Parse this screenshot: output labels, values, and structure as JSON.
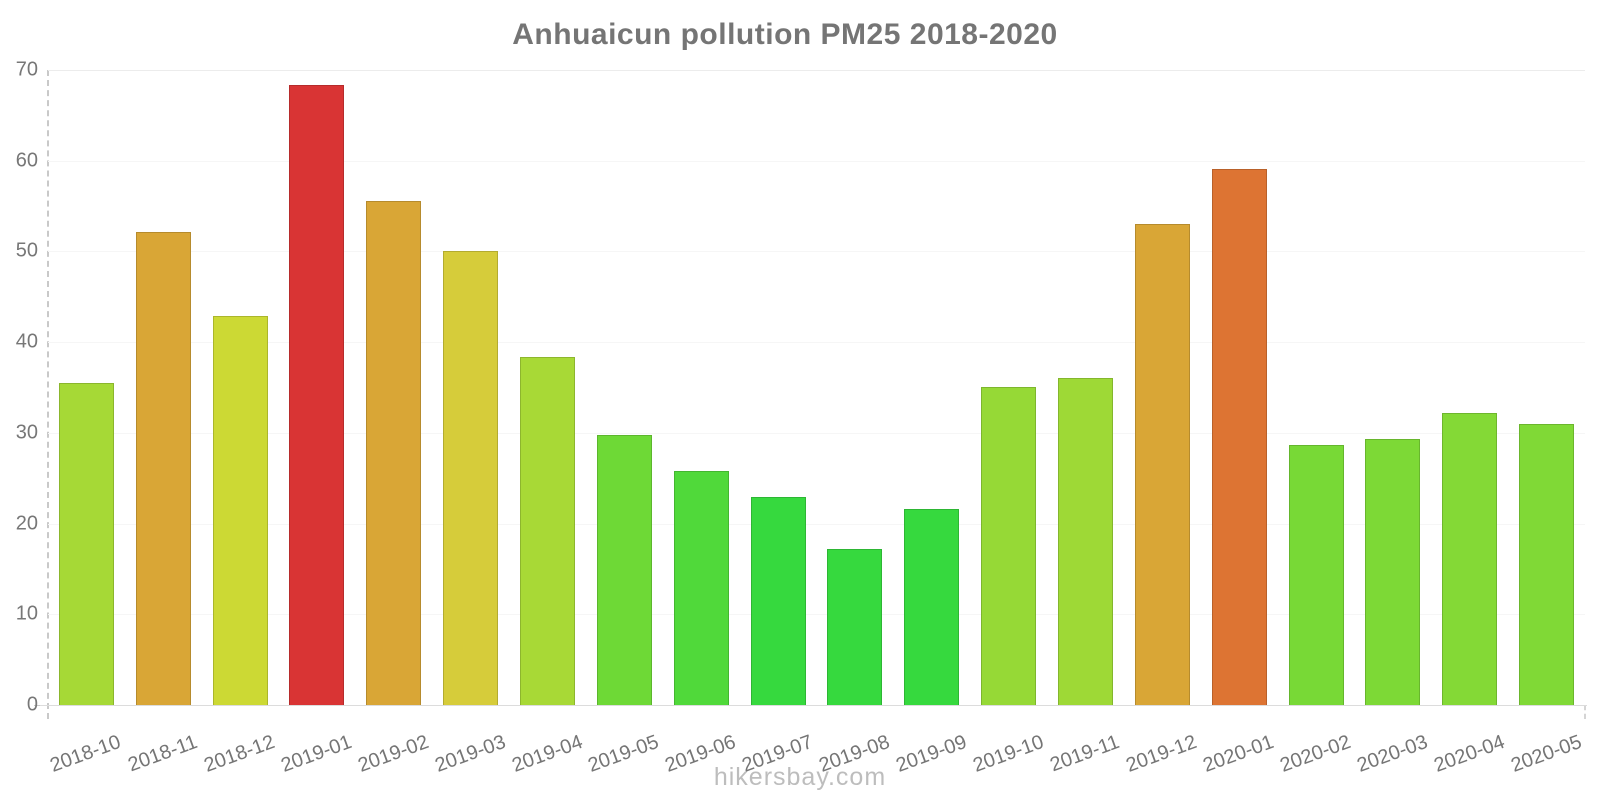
{
  "chart_data": {
    "type": "bar",
    "title": "Anhuaicun pollution PM25 2018-2020",
    "xlabel": "",
    "ylabel": "",
    "ylim": [
      0,
      70
    ],
    "yticks": [
      0,
      10,
      20,
      30,
      40,
      50,
      60,
      70
    ],
    "grid": "faint horizontal lines, dashed gray y-axis on left",
    "legend_position": "none",
    "categories": [
      "2018-10",
      "2018-11",
      "2018-12",
      "2019-01",
      "2019-02",
      "2019-03",
      "2019-04",
      "2019-05",
      "2019-06",
      "2019-07",
      "2019-08",
      "2019-09",
      "2019-10",
      "2019-11",
      "2019-12",
      "2020-01",
      "2020-02",
      "2020-03",
      "2020-04",
      "2020-05"
    ],
    "values": [
      35.5,
      52.1,
      42.9,
      68.3,
      55.6,
      50.0,
      38.4,
      29.8,
      25.8,
      22.9,
      17.2,
      21.6,
      35.1,
      36.1,
      53.0,
      59.1,
      28.7,
      29.3,
      32.2,
      31.0
    ],
    "bar_colors": [
      "#a6d936",
      "#d9a636",
      "#ccd934",
      "#d93434",
      "#d9a636",
      "#d6cc3a",
      "#a8d936",
      "#6ed936",
      "#50d93a",
      "#36d93e",
      "#36d93e",
      "#36d93e",
      "#96d936",
      "#9ed936",
      "#d9a636",
      "#dd7433",
      "#78d936",
      "#7dd936",
      "#84d936",
      "#80d936"
    ]
  },
  "footer": {
    "watermark": "hikersbay.com"
  },
  "colors": {
    "title_text": "#757575",
    "axis_label_text": "#777777",
    "watermark_text": "#bdbdbd",
    "axis_line": "#c9c9c9",
    "gridline": "#f6f6f6",
    "baseline": "#dcdcdc",
    "bar_border": "rgba(0,0,0,0.16)"
  }
}
